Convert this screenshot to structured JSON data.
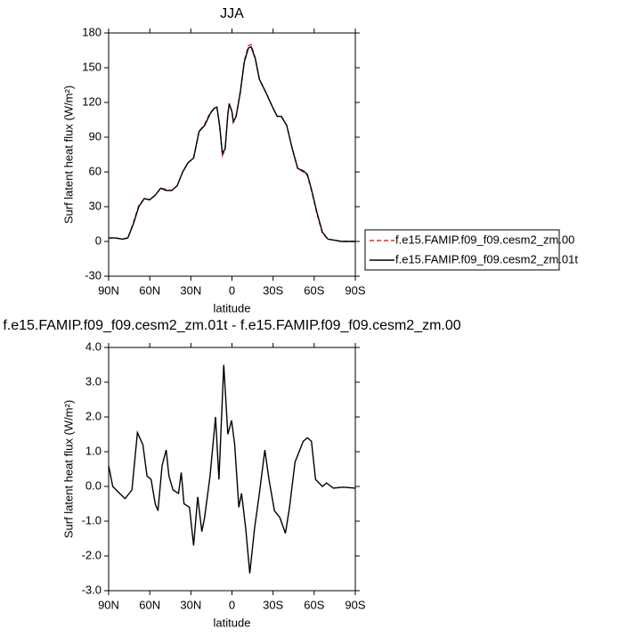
{
  "chart_data": [
    {
      "type": "line",
      "title": "JJA",
      "xlabel": "latitude",
      "ylabel": "Surf latent heat flux (W/m²)",
      "x": [
        90,
        85,
        80,
        76,
        72,
        68,
        64,
        60,
        56,
        52,
        48,
        44,
        40,
        36,
        32,
        28,
        24,
        20,
        16,
        13,
        11,
        9,
        7,
        5,
        3,
        2,
        0,
        -1,
        -3,
        -6,
        -9,
        -12,
        -14,
        -17,
        -20,
        -25,
        -30,
        -33,
        -36,
        -40,
        -44,
        -48,
        -52,
        -55,
        -58,
        -62,
        -66,
        -70,
        -75,
        -80,
        -85,
        -90
      ],
      "series": [
        {
          "name": "f.e15.FAMIP.f09_f09.cesm2_zm.00",
          "color": "#e8262a",
          "linestyle": "dashed",
          "values": [
            3,
            3,
            2,
            3,
            16,
            31,
            37,
            36,
            40,
            46,
            45,
            44,
            48,
            60,
            68,
            72,
            95,
            101,
            111,
            115,
            116,
            100,
            74,
            79,
            110,
            119,
            112,
            103,
            108,
            129,
            156,
            169,
            170,
            158,
            140,
            128,
            115,
            108,
            108,
            100,
            80,
            63,
            60,
            57,
            44,
            24,
            7,
            2,
            1,
            0,
            0,
            0
          ]
        },
        {
          "name": "f.e15.FAMIP.f09_f09.cesm2_zm.01t",
          "color": "#000000",
          "linestyle": "solid",
          "values": [
            3,
            3,
            2,
            3,
            15,
            30,
            37,
            36,
            40,
            46,
            44,
            44,
            48,
            60,
            68,
            72,
            95,
            100,
            110,
            115,
            116,
            100,
            76,
            80,
            110,
            119,
            112,
            103,
            108,
            128,
            155,
            167,
            168,
            158,
            140,
            128,
            115,
            108,
            108,
            100,
            80,
            63,
            61,
            58,
            45,
            25,
            8,
            2,
            1,
            0,
            0,
            0
          ]
        }
      ],
      "xlim": [
        90,
        -90
      ],
      "xticks": [
        {
          "value": 90,
          "label": "90N"
        },
        {
          "value": 60,
          "label": "60N"
        },
        {
          "value": 30,
          "label": "30N"
        },
        0,
        {
          "value": -30,
          "label": "30S"
        },
        {
          "value": -60,
          "label": "60S"
        },
        {
          "value": -90,
          "label": "90S"
        }
      ],
      "ylim": [
        -30,
        180
      ],
      "yticks": [
        -30,
        0,
        30,
        60,
        90,
        120,
        150,
        180
      ],
      "legend": "right"
    },
    {
      "type": "line",
      "title": "f.e15.FAMIP.f09_f09.cesm2_zm.01t - f.e15.FAMIP.f09_f09.cesm2_zm.00",
      "xlabel": "latitude",
      "ylabel": "Surf latent heat flux (W/m²)",
      "x": [
        90,
        87,
        82,
        78,
        73,
        69,
        65,
        62,
        59,
        56,
        54,
        51,
        48,
        46,
        43,
        39,
        37,
        35,
        31,
        28,
        25,
        22,
        20,
        16,
        12,
        9.5,
        6,
        3,
        0.3,
        -2,
        -5,
        -7,
        -10,
        -13,
        -16.5,
        -20,
        -24,
        -27,
        -31,
        -35,
        -39,
        -42,
        -46,
        -52,
        -55,
        -58,
        -61,
        -66,
        -69,
        -74,
        -81,
        -90
      ],
      "values": [
        0.6,
        0.0,
        -0.2,
        -0.35,
        -0.1,
        1.55,
        1.2,
        0.3,
        0.2,
        -0.5,
        -0.7,
        0.6,
        1.05,
        0.3,
        -0.1,
        -0.2,
        0.4,
        -0.5,
        -0.6,
        -1.7,
        -0.3,
        -1.3,
        -0.9,
        0.3,
        2.0,
        0.2,
        3.5,
        1.5,
        1.9,
        1.2,
        -0.6,
        -0.2,
        -1.2,
        -2.5,
        -1.2,
        -0.2,
        1.05,
        0.2,
        -0.7,
        -0.9,
        -1.35,
        -0.6,
        0.7,
        1.3,
        1.4,
        1.3,
        0.2,
        0.0,
        0.1,
        -0.05,
        -0.02,
        -0.05
      ],
      "color": "#000000",
      "xlim": [
        90,
        -90
      ],
      "xticks": [
        {
          "value": 90,
          "label": "90N"
        },
        {
          "value": 60,
          "label": "60N"
        },
        {
          "value": 30,
          "label": "30N"
        },
        0,
        {
          "value": -30,
          "label": "30S"
        },
        {
          "value": -60,
          "label": "60S"
        },
        {
          "value": -90,
          "label": "90S"
        }
      ],
      "ylim": [
        -3,
        4
      ],
      "yticks": [
        {
          "value": -3,
          "label": "-3.0"
        },
        {
          "value": -2,
          "label": "-2.0"
        },
        {
          "value": -1,
          "label": "-1.0"
        },
        {
          "value": 0,
          "label": "0.0"
        },
        {
          "value": 1,
          "label": "1.0"
        },
        {
          "value": 2,
          "label": "2.0"
        },
        {
          "value": 3,
          "label": "3.0"
        },
        {
          "value": 4,
          "label": "4.0"
        }
      ]
    }
  ]
}
